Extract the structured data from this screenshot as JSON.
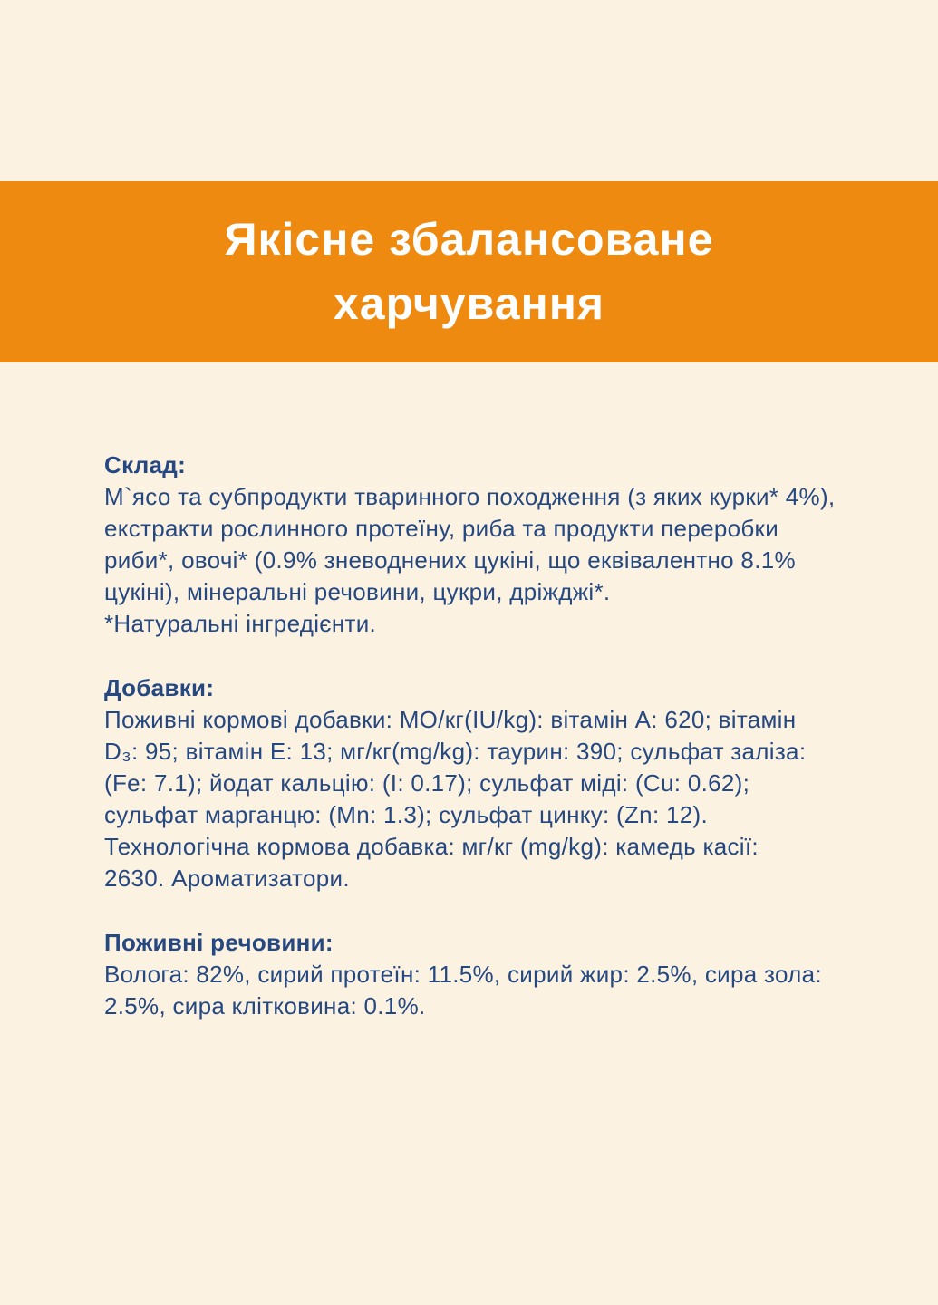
{
  "colors": {
    "page_background": "#FBF2E1",
    "banner_background": "#EE8A10",
    "banner_text": "#FFFFFF",
    "body_text": "#264881"
  },
  "banner": {
    "title_lines": [
      "Якісне збалансоване",
      "харчування"
    ]
  },
  "sections": [
    {
      "heading": "Склад:",
      "body_lines": [
        "М`ясо та субпродукти тваринного походження (з яких курки* 4%),",
        "екстракти рослинного протеїну, риба та продукти переробки",
        "риби*, овочі* (0.9% зневоднених цукіні, що еквівалентно 8.1%",
        "цукіні), мінеральні речовини, цукри, дріжджі*.",
        "*Натуральні інгредієнти."
      ]
    },
    {
      "heading": "Добавки:",
      "body_lines": [
        "Поживні кормові добавки: МО/кг(IU/kg): вітамін А: 620; вітамін",
        "D₃: 95; вітамін Е: 13; мг/кг(mg/kg): таурин: 390; сульфат заліза:",
        "(Fe: 7.1); йодат кальцію: (I: 0.17); сульфат міді: (Cu: 0.62);",
        "сульфат марганцю: (Mn: 1.3); сульфат цинку: (Zn: 12).",
        "Технологічна кормова добавка: мг/кг (mg/kg): камедь касії:",
        "2630. Ароматизатори."
      ]
    },
    {
      "heading": "Поживні речовини:",
      "body_lines": [
        "Волога: 82%, сирий протеїн: 11.5%, сирий жир: 2.5%, сира зола:",
        "2.5%, сира клітковина: 0.1%."
      ]
    }
  ]
}
